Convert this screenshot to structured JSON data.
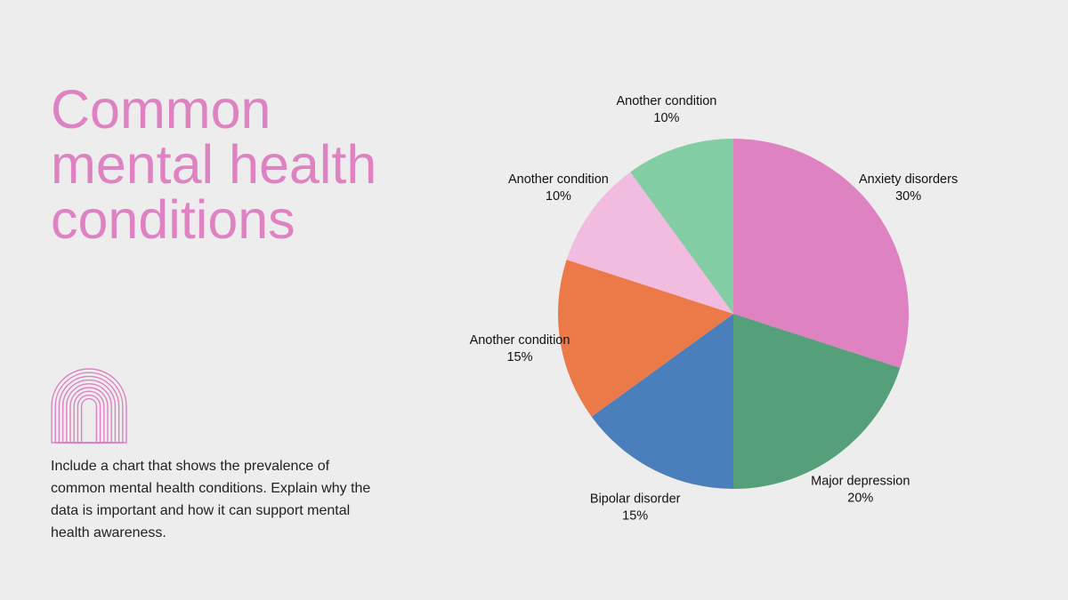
{
  "slide": {
    "title_lines": [
      "Common",
      "mental health",
      "conditions"
    ],
    "description": "Include a chart that shows the prevalence of common mental health conditions. Explain why the data is important and how it can support mental health awareness.",
    "logo_icon": "concentric-arch-icon",
    "colors": {
      "background": "#eeeded",
      "title": "#de82c2",
      "logo": "#de82c2"
    }
  },
  "chart_data": {
    "type": "pie",
    "categories": [
      "Anxiety disorders",
      "Major depression",
      "Bipolar disorder",
      "Another condition",
      "Another condition",
      "Another condition"
    ],
    "values": [
      30,
      20,
      15,
      15,
      10,
      10
    ],
    "value_labels": [
      "30%",
      "20%",
      "15%",
      "15%",
      "10%",
      "10%"
    ],
    "colors": [
      "#de82c2",
      "#55a07a",
      "#4b7fbc",
      "#ec7a48",
      "#f2bce0",
      "#82cda4"
    ],
    "start": "top",
    "direction": "clockwise",
    "labels_position": "outside",
    "title": "",
    "legend": "none"
  }
}
